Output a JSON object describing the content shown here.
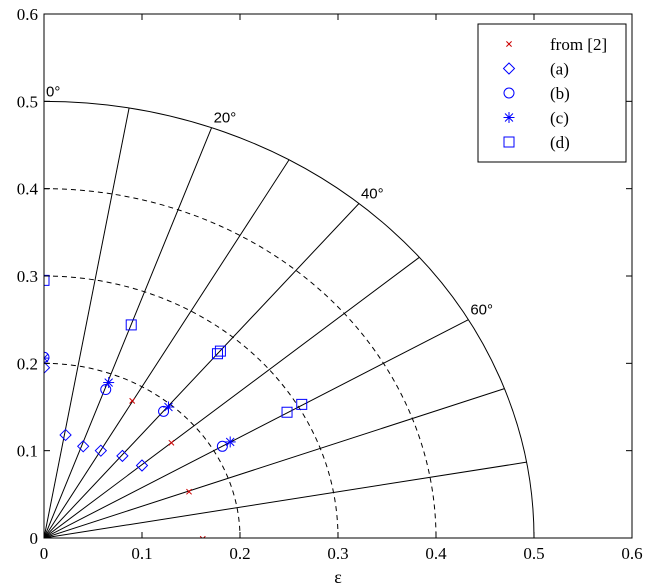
{
  "chart_data": {
    "type": "scatter",
    "title": "",
    "xlabel": "ε",
    "ylabel": "",
    "xlim": [
      0,
      0.6
    ],
    "ylim": [
      0,
      0.6
    ],
    "x_ticks": [
      "0",
      "0.1",
      "0.2",
      "0.3",
      "0.4",
      "0.5",
      "0.6"
    ],
    "y_ticks": [
      "0",
      "0.1",
      "0.2",
      "0.3",
      "0.4",
      "0.5",
      "0.6"
    ],
    "grid": false,
    "legend_position": "top-right",
    "polar_overlay": {
      "outer_radius": 0.5,
      "dashed_radii": [
        0.2,
        0.3,
        0.4
      ],
      "ray_angles_deg": [
        0,
        10,
        20,
        30,
        40,
        50,
        60,
        70,
        80,
        90
      ],
      "angle_labels": [
        {
          "deg": 0,
          "text": "0°"
        },
        {
          "deg": 20,
          "text": "20°"
        },
        {
          "deg": 40,
          "text": "40°"
        },
        {
          "deg": 60,
          "text": "60°"
        }
      ]
    },
    "series": [
      {
        "name": "from [2]",
        "marker": "x",
        "color": "#cc0000",
        "points": [
          [
            0.09,
            0.157
          ],
          [
            0.13,
            0.109
          ],
          [
            0.148,
            0.053
          ],
          [
            0.162,
            -0.001
          ]
        ]
      },
      {
        "name": "(a)",
        "marker": "diamond",
        "color": "#0000ff",
        "points": [
          [
            0.0,
            0.195
          ],
          [
            0.022,
            0.118
          ],
          [
            0.04,
            0.105
          ],
          [
            0.058,
            0.1
          ],
          [
            0.08,
            0.094
          ],
          [
            0.1,
            0.083
          ]
        ]
      },
      {
        "name": "(b)",
        "marker": "circle",
        "color": "#0000ff",
        "points": [
          [
            0.0,
            0.207
          ],
          [
            0.063,
            0.17
          ],
          [
            0.122,
            0.145
          ],
          [
            0.182,
            0.105
          ]
        ]
      },
      {
        "name": "(c)",
        "marker": "star",
        "color": "#0000ff",
        "points": [
          [
            0.0,
            0.206
          ],
          [
            0.066,
            0.178
          ],
          [
            0.127,
            0.15
          ],
          [
            0.19,
            0.11
          ]
        ]
      },
      {
        "name": "(d)",
        "marker": "square",
        "color": "#0000ff",
        "points": [
          [
            0.0,
            0.295
          ],
          [
            0.089,
            0.244
          ],
          [
            0.177,
            0.211
          ],
          [
            0.18,
            0.214
          ],
          [
            0.248,
            0.144
          ],
          [
            0.263,
            0.153
          ]
        ]
      }
    ]
  }
}
